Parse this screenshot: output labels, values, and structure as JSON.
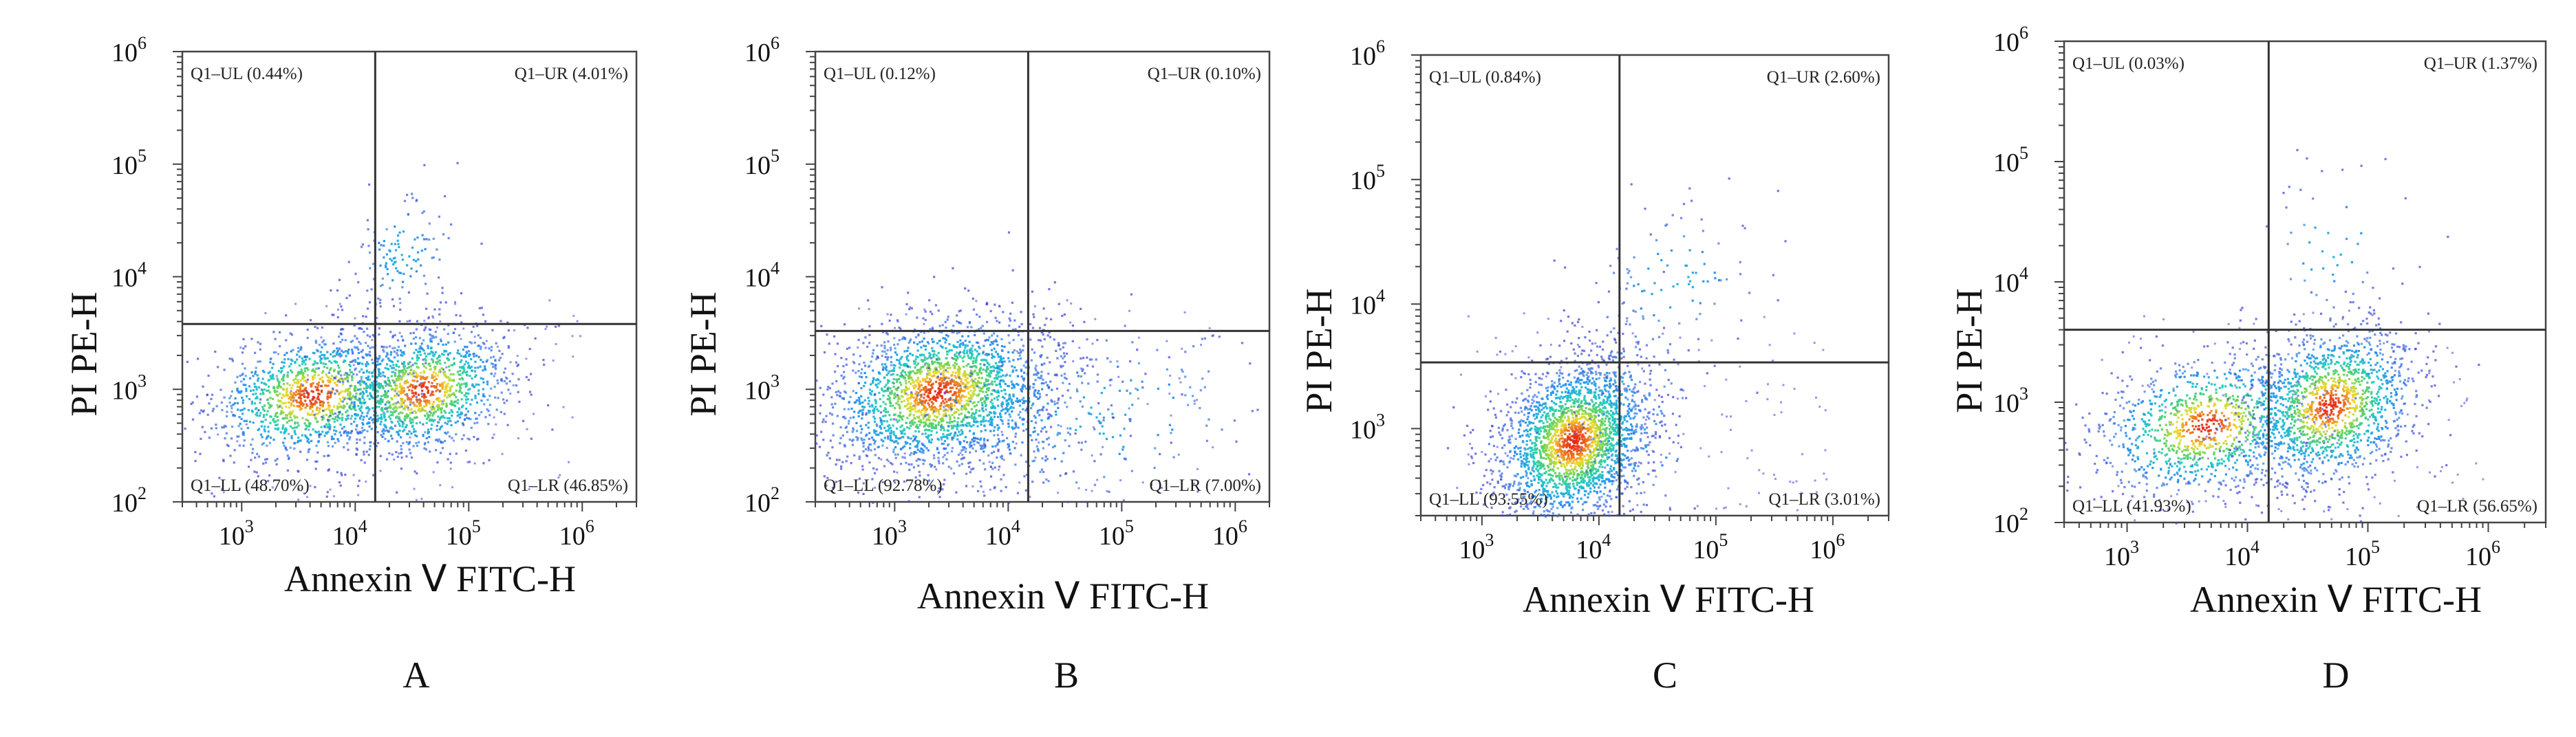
{
  "figure": {
    "panels": [
      "A",
      "B",
      "C",
      "D"
    ]
  },
  "chart_data": [
    {
      "type": "scatter",
      "panel_label": "A",
      "xlabel": "Annexin Ⅴ FITC-H",
      "ylabel": "PI PE-H",
      "xscale": "log",
      "yscale": "log",
      "xlim": [
        300,
        3000000
      ],
      "ylim": [
        100,
        1000000
      ],
      "xticks": [
        1000,
        10000,
        100000,
        1000000
      ],
      "yticks": [
        100,
        1000,
        10000,
        100000,
        1000000
      ],
      "gate": {
        "x": 15000,
        "y": 3800
      },
      "quadrants": {
        "UL": "Q1–UL (0.44%)",
        "UR": "Q1–UR (4.01%)",
        "LL": "Q1–LL (48.70%)",
        "LR": "Q1–LR (46.85%)"
      },
      "quadrant_percent": {
        "UL": 0.44,
        "UR": 4.01,
        "LL": 48.7,
        "LR": 46.85
      },
      "clusters": [
        {
          "x": 4200,
          "y": 900,
          "sx": 0.28,
          "sy": 0.17,
          "weight": 0.48
        },
        {
          "x": 38000,
          "y": 1000,
          "sx": 0.24,
          "sy": 0.17,
          "weight": 0.47
        },
        {
          "x": 25000,
          "y": 17000,
          "sx": 0.15,
          "sy": 0.18,
          "weight": 0.05
        }
      ]
    },
    {
      "type": "scatter",
      "panel_label": "B",
      "xlabel": "Annexin Ⅴ FITC-H",
      "ylabel": "PI PE-H",
      "xscale": "log",
      "yscale": "log",
      "xlim": [
        200,
        2000000
      ],
      "ylim": [
        100,
        1000000
      ],
      "xticks": [
        1000,
        10000,
        100000,
        1000000
      ],
      "yticks": [
        100,
        1000,
        10000,
        100000,
        1000000
      ],
      "gate": {
        "x": 15000,
        "y": 3300
      },
      "quadrants": {
        "UL": "Q1–UL (0.12%)",
        "UR": "Q1–UR (0.10%)",
        "LL": "Q1–LL (92.78%)",
        "LR": "Q1–LR (7.00%)"
      },
      "quadrant_percent": {
        "UL": 0.12,
        "UR": 0.1,
        "LL": 92.78,
        "LR": 7.0
      },
      "clusters": [
        {
          "x": 2400,
          "y": 950,
          "sx": 0.3,
          "sy": 0.2,
          "weight": 0.82
        },
        {
          "x": 9000,
          "y": 600,
          "sx": 0.35,
          "sy": 0.22,
          "weight": 0.12
        },
        {
          "x": 60000,
          "y": 600,
          "sx": 0.5,
          "sy": 0.3,
          "weight": 0.06
        }
      ]
    },
    {
      "type": "scatter",
      "panel_label": "C",
      "xlabel": "Annexin Ⅴ FITC-H",
      "ylabel": "PI PE-H",
      "xscale": "log",
      "yscale": "log",
      "xlim": [
        300,
        3000000
      ],
      "ylim": [
        200,
        1000000
      ],
      "xticks": [
        1000,
        10000,
        100000,
        1000000
      ],
      "yticks": [
        1000,
        10000,
        100000,
        1000000
      ],
      "gate": {
        "x": 15000,
        "y": 3400
      },
      "quadrants": {
        "UL": "Q1–UL (0.84%)",
        "UR": "Q1–UR (2.60%)",
        "LL": "Q1–LL (93.55%)",
        "LR": "Q1–LR (3.01%)"
      },
      "quadrant_percent": {
        "UL": 0.84,
        "UR": 2.6,
        "LL": 93.55,
        "LR": 3.01
      },
      "clusters": [
        {
          "x": 6000,
          "y": 800,
          "sx": 0.2,
          "sy": 0.2,
          "weight": 0.9
        },
        {
          "x": 14000,
          "y": 1500,
          "sx": 0.12,
          "sy": 0.3,
          "weight": 0.04
        },
        {
          "x": 45000,
          "y": 16000,
          "sx": 0.25,
          "sy": 0.2,
          "weight": 0.04
        },
        {
          "x": 20000,
          "y": 900,
          "sx": 0.25,
          "sy": 0.25,
          "weight": 0.02
        }
      ]
    },
    {
      "type": "scatter",
      "panel_label": "D",
      "xlabel": "Annexin Ⅴ FITC-H",
      "ylabel": "PI PE-H",
      "xscale": "log",
      "yscale": "log",
      "xlim": [
        300,
        3000000
      ],
      "ylim": [
        100,
        1000000
      ],
      "xticks": [
        1000,
        10000,
        100000,
        1000000
      ],
      "yticks": [
        100,
        1000,
        10000,
        100000,
        1000000
      ],
      "gate": {
        "x": 15000,
        "y": 4000
      },
      "quadrants": {
        "UL": "Q1–UL (0.03%)",
        "UR": "Q1–UR (1.37%)",
        "LL": "Q1–LL (41.93%)",
        "LR": "Q1–LR (56.65%)"
      },
      "quadrant_percent": {
        "UL": 0.03,
        "UR": 1.37,
        "LL": 41.93,
        "LR": 56.65
      },
      "clusters": [
        {
          "x": 4500,
          "y": 650,
          "sx": 0.28,
          "sy": 0.18,
          "weight": 0.42
        },
        {
          "x": 48000,
          "y": 950,
          "sx": 0.22,
          "sy": 0.2,
          "weight": 0.56
        },
        {
          "x": 50000,
          "y": 20000,
          "sx": 0.2,
          "sy": 0.22,
          "weight": 0.02
        }
      ]
    }
  ]
}
